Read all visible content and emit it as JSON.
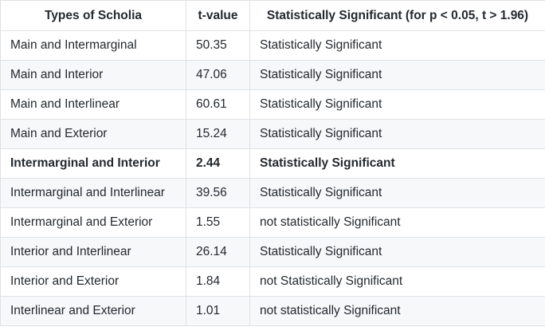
{
  "table": {
    "headers": [
      "Types of Scholia",
      "t-value",
      "Statistically Significant (for p < 0.05, t > 1.96)"
    ],
    "rows": [
      [
        "Main and Intermarginal",
        "50.35",
        "Statistically Significant"
      ],
      [
        "Main and Interior",
        "47.06",
        "Statistically Significant"
      ],
      [
        "Main and Interlinear",
        "60.61",
        "Statistically Significant"
      ],
      [
        "Main and Exterior",
        "15.24",
        "Statistically Significant"
      ],
      [
        "Intermarginal and Interior",
        "2.44",
        "Statistically Significant"
      ],
      [
        "Intermarginal and Interlinear",
        "39.56",
        "Statistically Significant"
      ],
      [
        "Intermarginal and Exterior",
        "1.55",
        "not statistically Significant"
      ],
      [
        "Interior and Interlinear",
        "26.14",
        "Statistically Significant"
      ],
      [
        "Interior and Exterior",
        "1.84",
        "not Statistically Significant"
      ],
      [
        "Interlinear and Exterior",
        "1.01",
        "not statistically Significant"
      ]
    ]
  },
  "colors": {
    "border": "#dfe2e5",
    "stripe": "#f6f8fa",
    "text": "#24292e"
  }
}
